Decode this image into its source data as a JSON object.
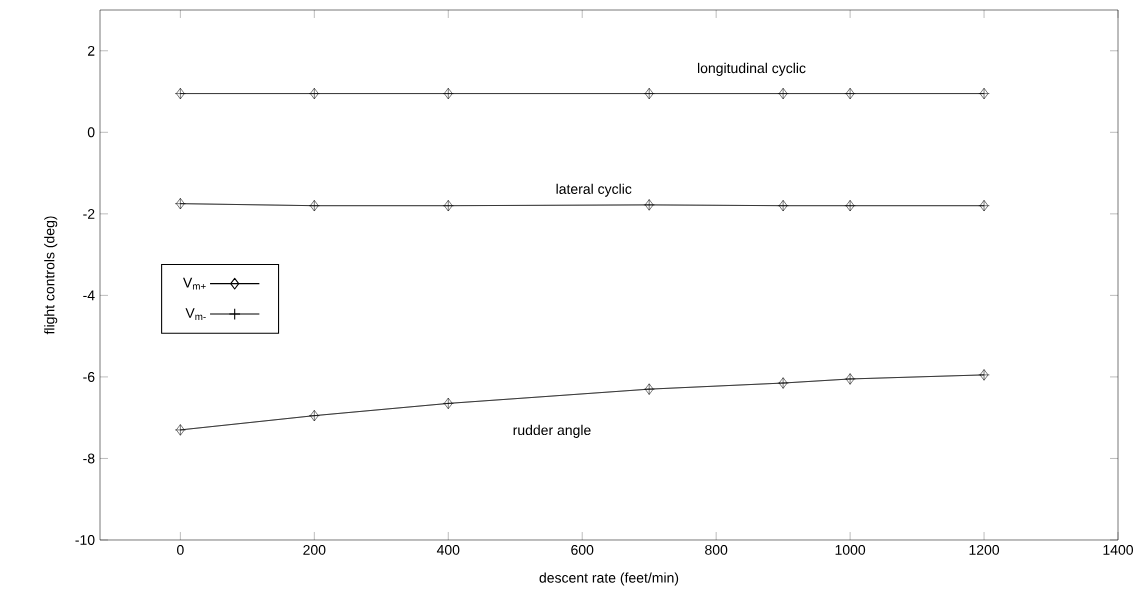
{
  "chart_data": {
    "type": "line",
    "xlabel": "descent rate (feet/min)",
    "ylabel": "flight controls (deg)",
    "x": [
      0,
      200,
      400,
      700,
      900,
      1000,
      1200
    ],
    "series": [
      {
        "name": "V$_{m+}$",
        "color": "#000000",
        "marker": "diamond",
        "values": [
          0.95,
          0.95,
          0.95,
          0.95,
          0.95,
          0.95,
          0.95
        ]
      },
      {
        "name": "V$_{m-}$",
        "color": "#000000",
        "marker": "cross",
        "values": [
          0.95,
          0.95,
          0.95,
          0.95,
          0.95,
          0.95,
          0.95
        ]
      },
      {
        "color": "#000000",
        "marker": "diamond",
        "values": [
          -1.75,
          -1.8,
          -1.8,
          -1.78,
          -1.8,
          -1.8,
          -1.8
        ]
      },
      {
        "color": "#000000",
        "marker": "cross",
        "values": [
          -1.75,
          -1.8,
          -1.8,
          -1.78,
          -1.8,
          -1.8,
          -1.8
        ]
      },
      {
        "color": "#000000",
        "marker": "diamond",
        "values": [
          -7.3,
          -6.95,
          -6.65,
          -6.3,
          -6.15,
          -6.05,
          -5.95
        ]
      },
      {
        "color": "#000000",
        "marker": "cross",
        "values": [
          -7.3,
          -6.95,
          -6.65,
          -6.3,
          -6.15,
          -6.05,
          -5.95
        ]
      }
    ],
    "xlim": [
      -120,
      1400
    ],
    "ylim": [
      -10,
      3
    ],
    "xticks": [
      0,
      200,
      400,
      600,
      800,
      1000,
      1200,
      1400
    ],
    "yticks": [
      -10,
      -8,
      -6,
      -4,
      -2,
      0,
      2
    ],
    "annotations": [
      "longitudinal cyclic",
      "lateral cyclic",
      "rudder angle"
    ],
    "legend": "left",
    "grid": false,
    "line_style": "solid"
  }
}
